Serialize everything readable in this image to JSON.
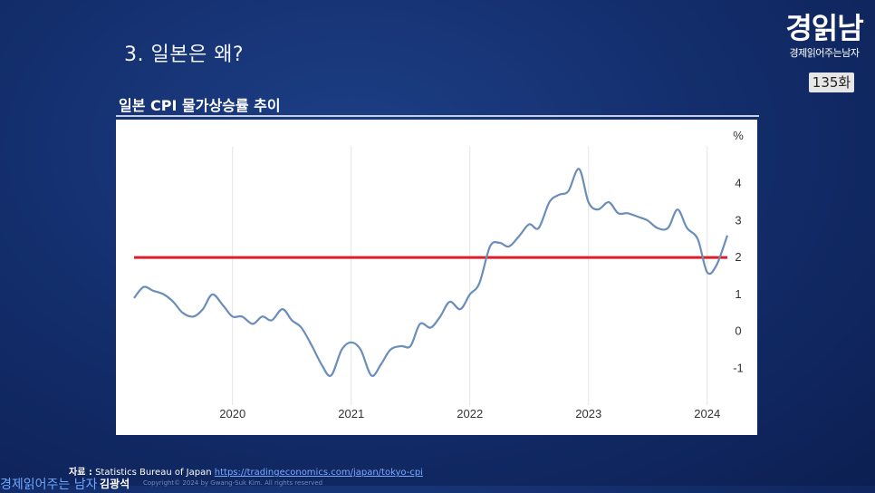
{
  "section_title": "3. 일본은 왜?",
  "logo": {
    "main": "경읽남",
    "sub": "경제읽어주는남자",
    "episode": "135화"
  },
  "source": {
    "label": "자료 :",
    "text": "Statistics Bureau of Japan",
    "link": "https://tradingeconomics.com/japan/tokyo-cpi"
  },
  "footer": {
    "brand": "경제읽어주는 남자",
    "name": "김광석",
    "copyright": "Copyright© 2024 by Gwang-Suk Kim. All rights reserved"
  },
  "colors": {
    "series_line": "#6a8dba",
    "reference_line": "#dd1d2a"
  },
  "chart_data": {
    "type": "line",
    "title": "일본 CPI 물가상승률 추이",
    "ylabel": "%",
    "ylim": [
      -2,
      5
    ],
    "xlim": [
      2019.17,
      2024.17
    ],
    "y_ticks": [
      "4",
      "3",
      "2",
      "1",
      "0",
      "-1"
    ],
    "x_ticks": [
      "2020",
      "2021",
      "2022",
      "2023",
      "2024"
    ],
    "grid": "vertical",
    "reference_line": {
      "y": 2
    },
    "series": [
      {
        "x": [
          2019.17,
          2019.25,
          2019.33,
          2019.42,
          2019.5,
          2019.58,
          2019.67,
          2019.75,
          2019.83,
          2019.92,
          2020.0,
          2020.08,
          2020.17,
          2020.25,
          2020.33,
          2020.42,
          2020.5,
          2020.58,
          2020.67,
          2020.75,
          2020.83,
          2020.92,
          2021.0,
          2021.08,
          2021.17,
          2021.25,
          2021.33,
          2021.42,
          2021.5,
          2021.58,
          2021.67,
          2021.75,
          2021.83,
          2021.92,
          2022.0,
          2022.08,
          2022.17,
          2022.25,
          2022.33,
          2022.42,
          2022.5,
          2022.58,
          2022.67,
          2022.75,
          2022.83,
          2022.92,
          2023.0,
          2023.08,
          2023.17,
          2023.25,
          2023.33,
          2023.42,
          2023.5,
          2023.58,
          2023.67,
          2023.75,
          2023.83,
          2023.92,
          2024.0,
          2024.08,
          2024.17
        ],
        "y": [
          0.9,
          1.2,
          1.1,
          1.0,
          0.8,
          0.5,
          0.4,
          0.6,
          1.0,
          0.7,
          0.4,
          0.4,
          0.2,
          0.4,
          0.3,
          0.6,
          0.3,
          0.1,
          -0.4,
          -0.9,
          -1.2,
          -0.5,
          -0.3,
          -0.5,
          -1.2,
          -0.9,
          -0.5,
          -0.4,
          -0.4,
          0.2,
          0.1,
          0.4,
          0.8,
          0.6,
          1.0,
          1.3,
          2.3,
          2.4,
          2.3,
          2.6,
          2.9,
          2.8,
          3.5,
          3.7,
          3.8,
          4.4,
          3.5,
          3.3,
          3.5,
          3.2,
          3.2,
          3.1,
          3.0,
          2.8,
          2.8,
          3.3,
          2.8,
          2.5,
          1.6,
          1.8,
          2.6
        ]
      }
    ]
  }
}
